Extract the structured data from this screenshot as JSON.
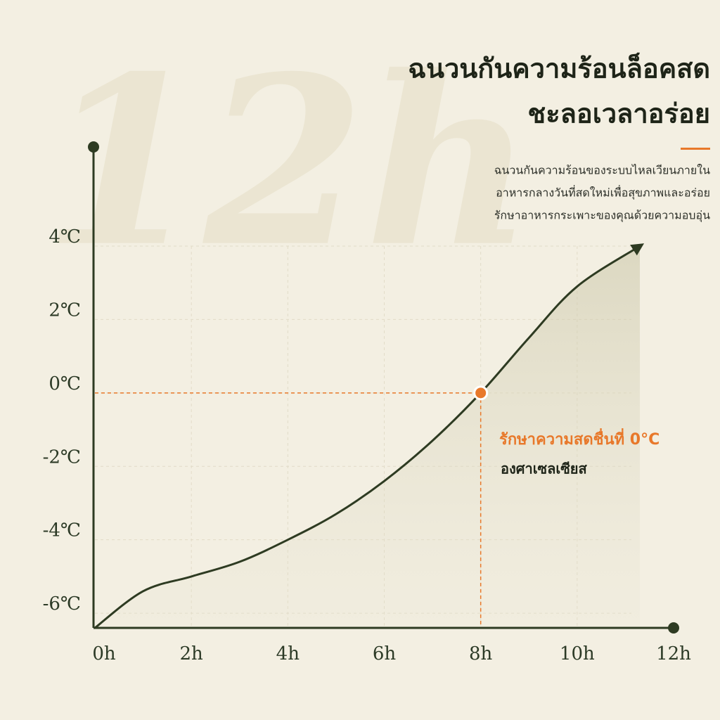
{
  "chart_data": {
    "type": "line",
    "title": [
      "ฉนวนกันความร้อนล็อคสด",
      "ชะลอเวลาอร่อย"
    ],
    "subtitle": [
      "ฉนวนกันความร้อนของระบบไหลเวียนภายใน",
      "อาหารกลางวันที่สดใหม่เพื่อสุขภาพและอร่อย",
      "รักษาอาหารกระเพาะของคุณด้วยความอบอุ่น"
    ],
    "watermark": "12h",
    "x": [
      0,
      1,
      2,
      3,
      4,
      5,
      6,
      7,
      8,
      9,
      10,
      11.3
    ],
    "values": [
      -6.4,
      -5.4,
      -5.0,
      -4.6,
      -4.0,
      -3.3,
      -2.4,
      -1.3,
      0,
      1.5,
      2.9,
      4.0
    ],
    "color": "#2e3b22",
    "xlim": [
      0,
      12
    ],
    "ylim": [
      -6.4,
      6.7
    ],
    "xticks": [
      {
        "value": 0,
        "label": "0h"
      },
      {
        "value": 2,
        "label": "2h"
      },
      {
        "value": 4,
        "label": "4h"
      },
      {
        "value": 6,
        "label": "6h"
      },
      {
        "value": 8,
        "label": "8h"
      },
      {
        "value": 10,
        "label": "10h"
      },
      {
        "value": 12,
        "label": "12h"
      }
    ],
    "yticks": [
      {
        "value": 4,
        "label": "4℃"
      },
      {
        "value": 2,
        "label": "2℃"
      },
      {
        "value": 0,
        "label": "0℃"
      },
      {
        "value": -2,
        "label": "-2℃"
      },
      {
        "value": -4,
        "label": "-4℃"
      },
      {
        "value": -6,
        "label": "-6℃"
      }
    ],
    "grid": true,
    "highlight": {
      "x": 8,
      "y": 0,
      "color": "#e8782a",
      "label": "รักษาความสดชื่นที่ 0°C",
      "sublabel": "องศาเซลเซียส"
    }
  }
}
